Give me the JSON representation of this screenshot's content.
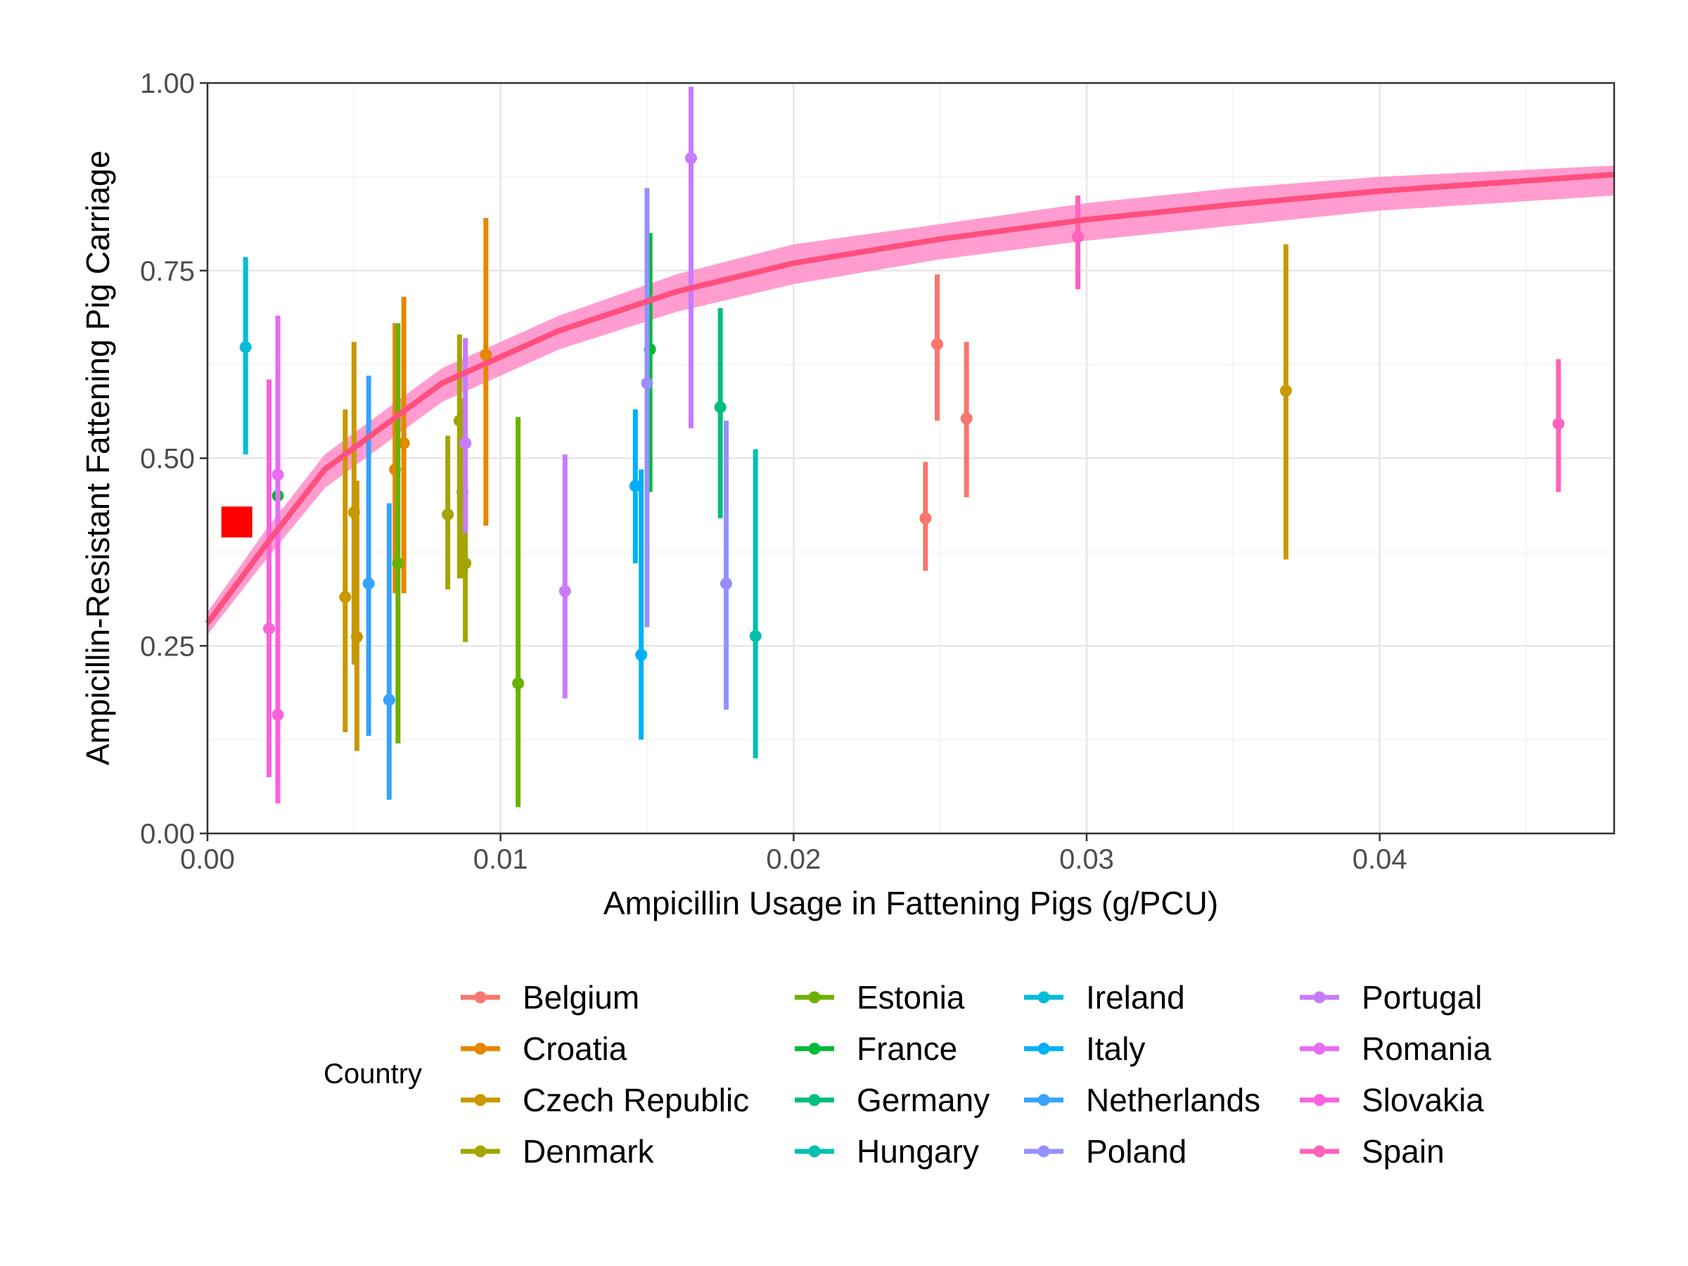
{
  "chart_data": {
    "type": "scatter",
    "title": "",
    "xlabel": "Ampicillin Usage in Fattening Pigs (g/PCU)",
    "ylabel": "Ampicillin-Resistant Fattening Pig Carriage",
    "xlim": [
      0,
      0.048
    ],
    "ylim": [
      0,
      1
    ],
    "x_ticks": [
      "0.00",
      "0.01",
      "0.02",
      "0.03",
      "0.04"
    ],
    "y_ticks": [
      "0.00",
      "0.25",
      "0.50",
      "0.75",
      "1.00"
    ],
    "grid": true,
    "legend_title": "Country",
    "legend_position": "bottom",
    "series": [
      {
        "name": "Belgium",
        "color": "#F8766D",
        "points": [
          {
            "x": 0.0245,
            "y": 0.42,
            "lo": 0.35,
            "hi": 0.495
          },
          {
            "x": 0.0249,
            "y": 0.652,
            "lo": 0.55,
            "hi": 0.745
          },
          {
            "x": 0.0259,
            "y": 0.553,
            "lo": 0.448,
            "hi": 0.655
          }
        ]
      },
      {
        "name": "Croatia",
        "color": "#E58700",
        "points": [
          {
            "x": 0.0064,
            "y": 0.485,
            "lo": 0.32,
            "hi": 0.68
          },
          {
            "x": 0.0067,
            "y": 0.52,
            "lo": 0.32,
            "hi": 0.715
          },
          {
            "x": 0.0095,
            "y": 0.638,
            "lo": 0.41,
            "hi": 0.82
          }
        ]
      },
      {
        "name": "Czech Republic",
        "color": "#C99800",
        "points": [
          {
            "x": 0.0047,
            "y": 0.315,
            "lo": 0.135,
            "hi": 0.565
          },
          {
            "x": 0.005,
            "y": 0.428,
            "lo": 0.225,
            "hi": 0.655
          },
          {
            "x": 0.0051,
            "y": 0.262,
            "lo": 0.11,
            "hi": 0.47
          },
          {
            "x": 0.0368,
            "y": 0.59,
            "lo": 0.365,
            "hi": 0.785
          }
        ]
      },
      {
        "name": "Denmark",
        "color": "#A3A500",
        "points": [
          {
            "x": 0.0082,
            "y": 0.425,
            "lo": 0.325,
            "hi": 0.53
          },
          {
            "x": 0.0086,
            "y": 0.55,
            "lo": 0.34,
            "hi": 0.665
          },
          {
            "x": 0.0088,
            "y": 0.36,
            "lo": 0.255,
            "hi": 0.465
          },
          {
            "x": 0.0087,
            "y": 0.455,
            "lo": 0.34,
            "hi": 0.58
          }
        ]
      },
      {
        "name": "Estonia",
        "color": "#6BB100",
        "points": [
          {
            "x": 0.0065,
            "y": 0.36,
            "lo": 0.12,
            "hi": 0.68
          },
          {
            "x": 0.0106,
            "y": 0.2,
            "lo": 0.035,
            "hi": 0.555
          }
        ]
      },
      {
        "name": "France",
        "color": "#00BA38",
        "points": [
          {
            "x": 0.0024,
            "y": 0.45,
            "lo": 0.32,
            "hi": 0.52
          },
          {
            "x": 0.0151,
            "y": 0.645,
            "lo": 0.455,
            "hi": 0.8
          }
        ]
      },
      {
        "name": "Germany",
        "color": "#00BF7D",
        "points": [
          {
            "x": 0.0175,
            "y": 0.568,
            "lo": 0.42,
            "hi": 0.7
          }
        ]
      },
      {
        "name": "Hungary",
        "color": "#00C0AF",
        "points": [
          {
            "x": 0.0187,
            "y": 0.263,
            "lo": 0.1,
            "hi": 0.512
          }
        ]
      },
      {
        "name": "Ireland",
        "color": "#00BCD8",
        "points": [
          {
            "x": 0.0013,
            "y": 0.648,
            "lo": 0.505,
            "hi": 0.768
          }
        ]
      },
      {
        "name": "Italy",
        "color": "#00B0F6",
        "points": [
          {
            "x": 0.0146,
            "y": 0.463,
            "lo": 0.36,
            "hi": 0.565
          },
          {
            "x": 0.0148,
            "y": 0.238,
            "lo": 0.125,
            "hi": 0.485
          }
        ]
      },
      {
        "name": "Netherlands",
        "color": "#35A2FF",
        "points": [
          {
            "x": 0.0055,
            "y": 0.333,
            "lo": 0.13,
            "hi": 0.61
          },
          {
            "x": 0.0062,
            "y": 0.178,
            "lo": 0.045,
            "hi": 0.44
          }
        ]
      },
      {
        "name": "Poland",
        "color": "#9590FF",
        "points": [
          {
            "x": 0.015,
            "y": 0.6,
            "lo": 0.275,
            "hi": 0.86
          },
          {
            "x": 0.0177,
            "y": 0.333,
            "lo": 0.165,
            "hi": 0.55
          }
        ]
      },
      {
        "name": "Portugal",
        "color": "#C77CFF",
        "points": [
          {
            "x": 0.0122,
            "y": 0.323,
            "lo": 0.18,
            "hi": 0.505
          },
          {
            "x": 0.0165,
            "y": 0.9,
            "lo": 0.54,
            "hi": 0.995
          },
          {
            "x": 0.0088,
            "y": 0.52,
            "lo": 0.4,
            "hi": 0.66
          }
        ]
      },
      {
        "name": "Romania",
        "color": "#E76BF3",
        "points": [
          {
            "x": 0.0024,
            "y": 0.478,
            "lo": 0.34,
            "hi": 0.69
          }
        ]
      },
      {
        "name": "Slovakia",
        "color": "#FA62DB",
        "points": [
          {
            "x": 0.0021,
            "y": 0.273,
            "lo": 0.075,
            "hi": 0.605
          },
          {
            "x": 0.0024,
            "y": 0.158,
            "lo": 0.04,
            "hi": 0.39
          }
        ]
      },
      {
        "name": "Spain",
        "color": "#FF62BC",
        "points": [
          {
            "x": 0.0297,
            "y": 0.795,
            "lo": 0.725,
            "hi": 0.85
          },
          {
            "x": 0.0461,
            "y": 0.546,
            "lo": 0.455,
            "hi": 0.632
          }
        ]
      }
    ],
    "fit": {
      "color": "#FF4F7F",
      "ribbon_color": "#FF8CC8",
      "x": [
        0,
        0.002,
        0.004,
        0.008,
        0.012,
        0.016,
        0.02,
        0.025,
        0.03,
        0.035,
        0.04,
        0.048
      ],
      "y": [
        0.28,
        0.385,
        0.485,
        0.6,
        0.67,
        0.722,
        0.76,
        0.792,
        0.818,
        0.838,
        0.856,
        0.878
      ],
      "lo": [
        0.265,
        0.365,
        0.46,
        0.575,
        0.645,
        0.695,
        0.732,
        0.765,
        0.79,
        0.81,
        0.83,
        0.85
      ],
      "hi": [
        0.295,
        0.405,
        0.505,
        0.62,
        0.69,
        0.745,
        0.785,
        0.812,
        0.84,
        0.86,
        0.875,
        0.89
      ]
    },
    "reference_point": {
      "x": 0.001,
      "y": 0.415,
      "color": "#FF0000",
      "shape": "square"
    }
  }
}
